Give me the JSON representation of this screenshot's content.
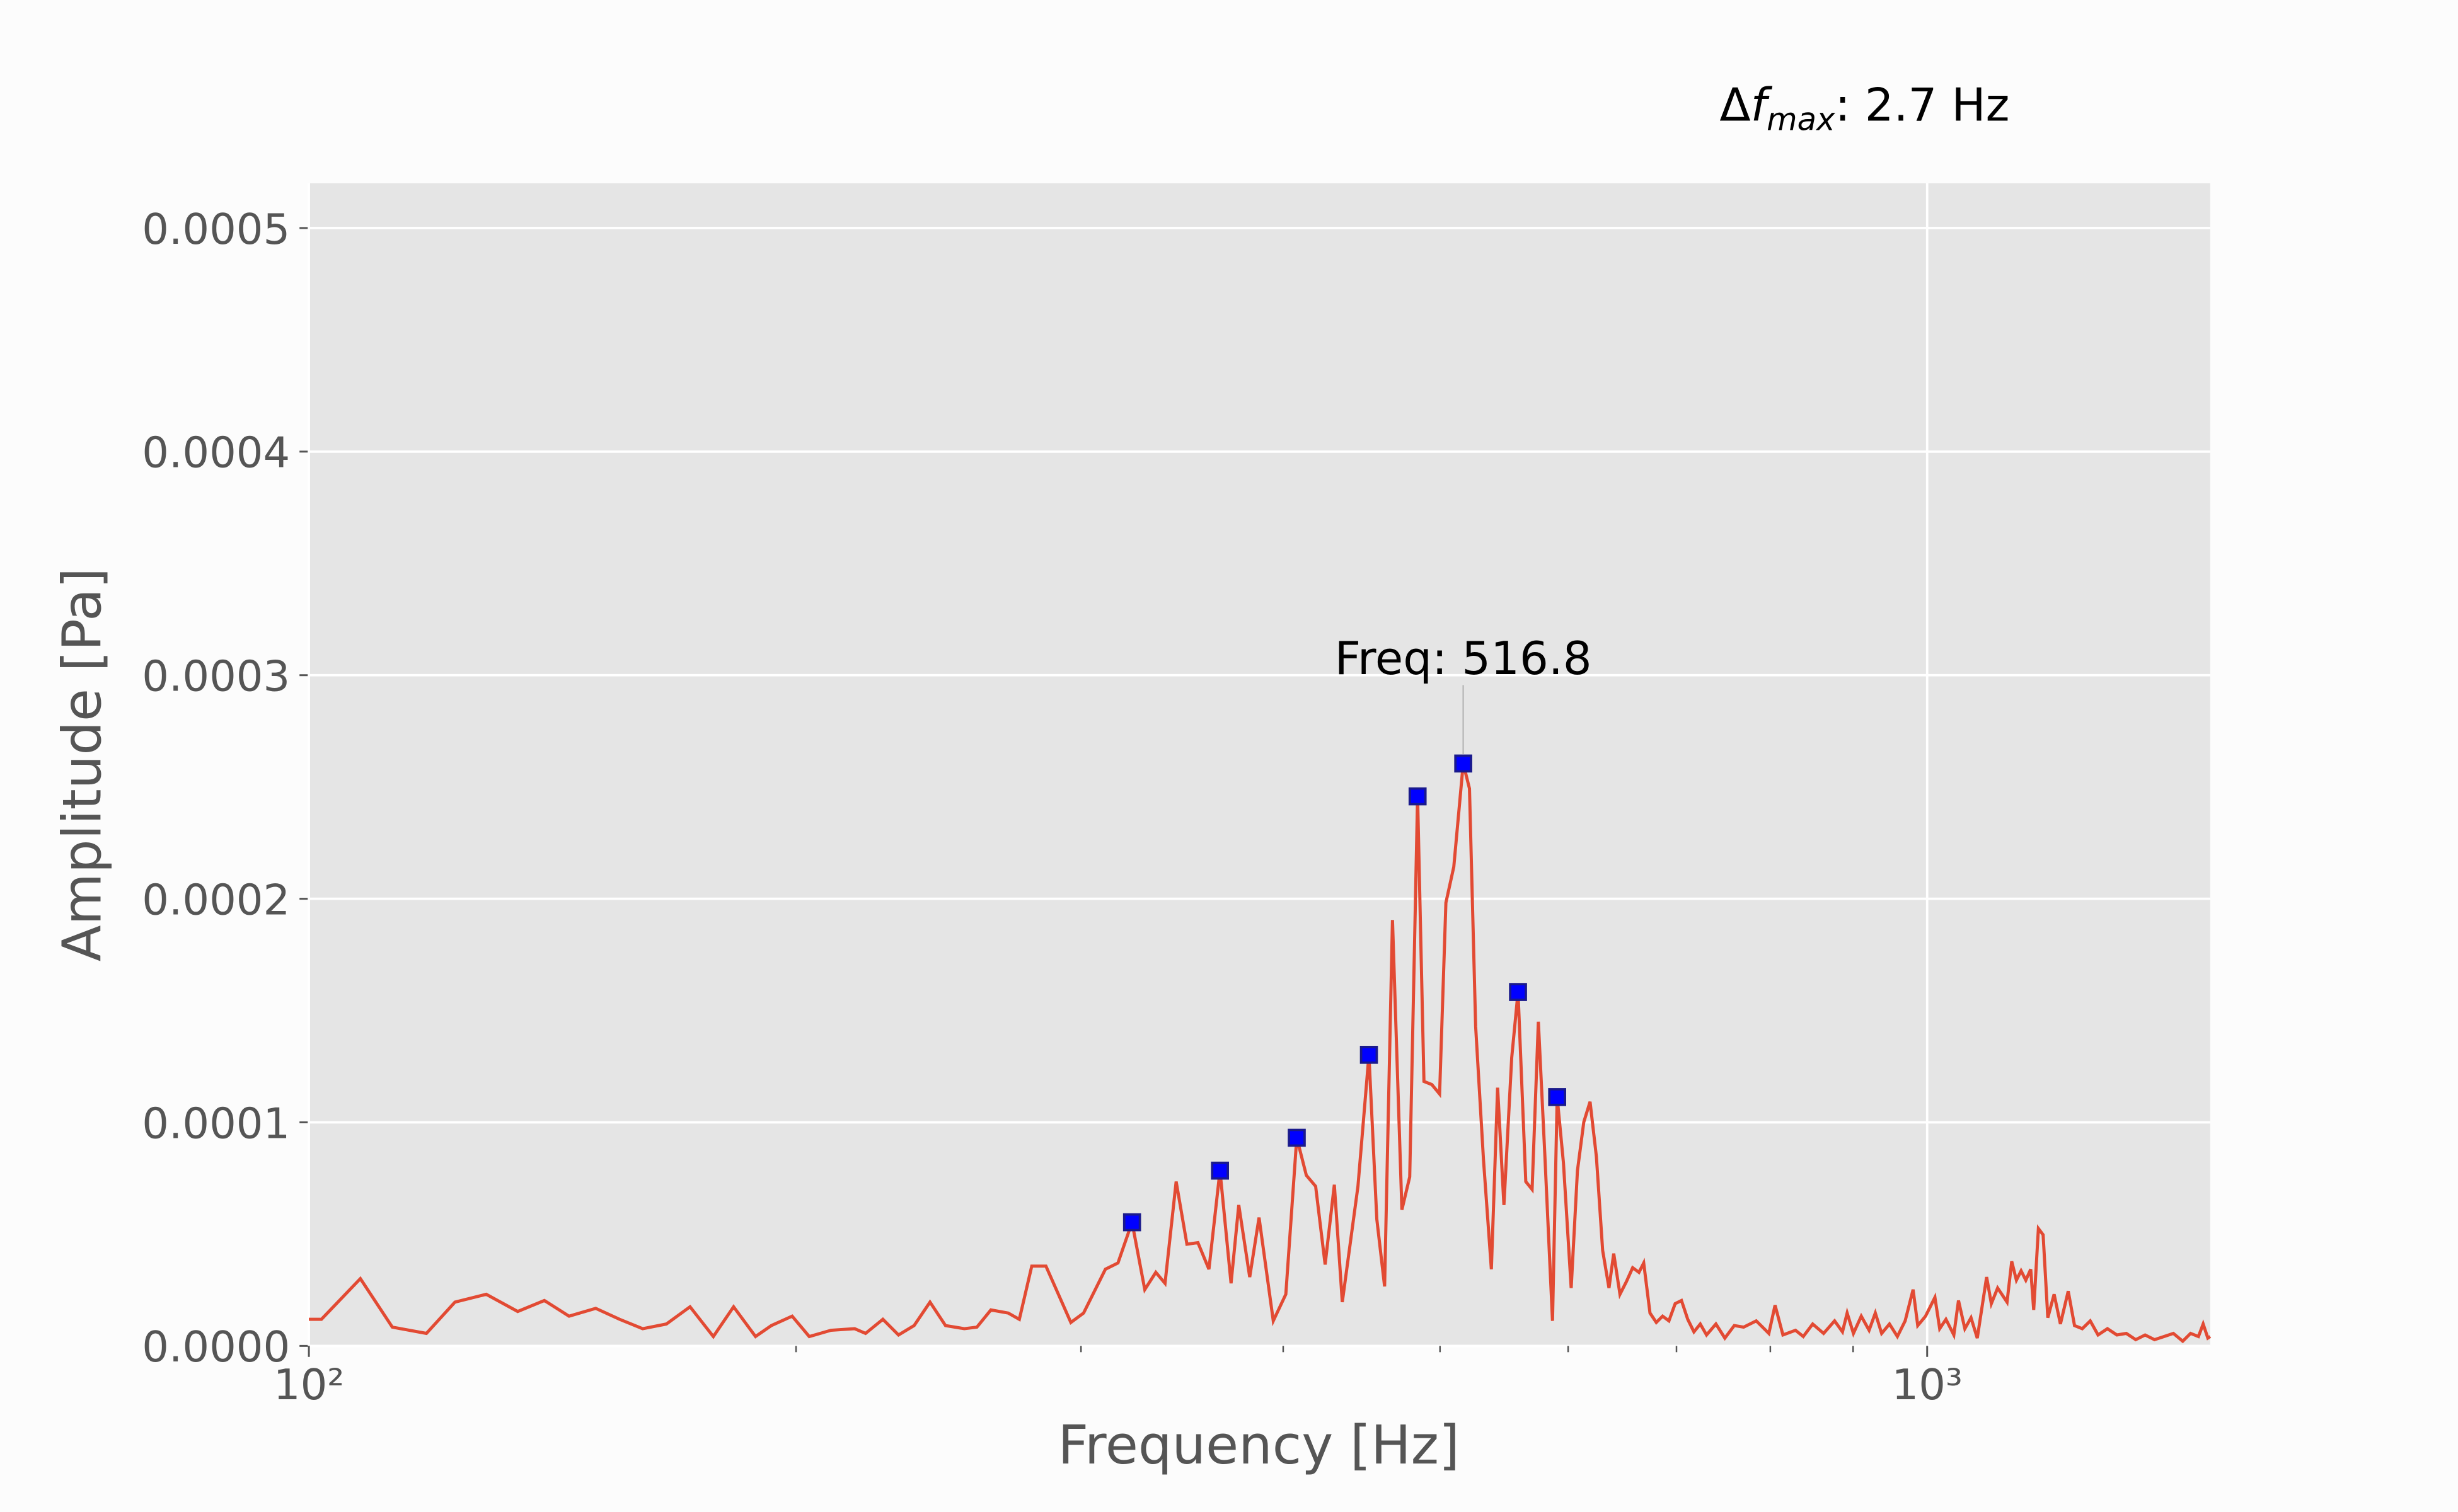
{
  "chart_data": {
    "type": "line",
    "xlabel": "Frequency [Hz]",
    "ylabel": "Amplitude [Pa]",
    "xscale": "log",
    "grid": true,
    "xlim": [
      100,
      1496
    ],
    "ylim": [
      0,
      0.00052
    ],
    "xticks": [
      {
        "value": 100,
        "label": "10²"
      },
      {
        "value": 1000,
        "label": "10³"
      }
    ],
    "xminorticks": [
      200,
      300,
      400,
      500,
      600,
      700,
      800,
      900
    ],
    "yticks": [
      {
        "value": 0,
        "label": "0.0000"
      },
      0.0001,
      0.0002,
      0.0003,
      0.0004,
      0.0005
    ],
    "delta_label": {
      "symbol": "Δ",
      "variable": "f",
      "subscript": "max",
      "suffix": ": 2.7 Hz"
    },
    "peak_label": "Freq: 516.8",
    "series": [
      {
        "color": "#e24a33",
        "x": [
          100,
          101.8,
          107.6,
          112.6,
          118.2,
          123.1,
          128.7,
          134.6,
          139.8,
          144.8,
          150.4,
          155.6,
          160.8,
          166.3,
          172.0,
          177.8,
          183.0,
          188.8,
          193.1,
          198.9,
          203.8,
          210.2,
          217.4,
          220.8,
          226.3,
          231.4,
          236.6,
          242.0,
          247.4,
          254.1,
          258.7,
          263.9,
          270.5,
          274.8,
          279.7,
          285.4,
          295.7,
          301.1,
          310.6,
          316.2,
          322.6,
          328.5,
          333.7,
          338.1,
          343.5,
          348.8,
          354.3,
          359.9,
          365.6,
          371.4,
          375.5,
          381.4,
          386.5,
          394.4,
          401.5,
          407.8,
          413.4,
          418.9,
          424.6,
          430.2,
          435.1,
          444.9,
          451.9,
          457.0,
          462.1,
          467.3,
          473.6,
          478.9,
          484.3,
          488.7,
          494.2,
          499.7,
          504.2,
          509.9,
          516.8,
          521.4,
          526.0,
          531.9,
          537.9,
          542.7,
          547.6,
          553.7,
          558.7,
          564.9,
          570.0,
          575.1,
          580.3,
          586.8,
          590.7,
          596.0,
          602.6,
          608.0,
          613.5,
          619.0,
          624.6,
          630.2,
          635.9,
          640.2,
          645.9,
          651.8,
          657.7,
          663.6,
          668.1,
          674.1,
          680.2,
          686.3,
          692.5,
          698.7,
          705.0,
          711.3,
          717.6,
          724.1,
          730.6,
          740.4,
          749.9,
          760.0,
          770.2,
          784.1,
          798.3,
          805.4,
          814.5,
          829.2,
          838.4,
          849.7,
          863.0,
          876.6,
          886.5,
          892.4,
          900.4,
          910.5,
          920.7,
          928.9,
          937.3,
          947.8,
          958.5,
          969.2,
          980.2,
          986.7,
          997.7,
          1011.1,
          1018.0,
          1027.1,
          1038.7,
          1045.6,
          1055.1,
          1064.4,
          1073.9,
          1088.3,
          1095.6,
          1105.5,
          1120.4,
          1127.9,
          1135.4,
          1143.0,
          1150.7,
          1158.8,
          1163.7,
          1171.5,
          1179.4,
          1187.3,
          1198.0,
          1208.8,
          1222.3,
          1233.3,
          1247.0,
          1261.2,
          1275.3,
          1292.4,
          1309.9,
          1327.6,
          1345.5,
          1363.6,
          1382.0,
          1400.7,
          1419.5,
          1438.6,
          1454.7,
          1471.1,
          1481.0,
          1490.9,
          1496
        ],
        "values": [
          1.19e-05,
          1.19e-05,
          3.01e-05,
          8.4e-06,
          5.6e-06,
          1.96e-05,
          2.31e-05,
          1.54e-05,
          2.03e-05,
          1.33e-05,
          1.68e-05,
          1.19e-05,
          7.7e-06,
          9.8e-06,
          1.75e-05,
          4.2e-06,
          1.75e-05,
          4.2e-06,
          9.1e-06,
          1.33e-05,
          4.2e-06,
          7e-06,
          7.7e-06,
          5.6e-06,
          1.19e-05,
          4.9e-06,
          9.1e-06,
          1.96e-05,
          9.1e-06,
          7.7e-06,
          8.4e-06,
          1.61e-05,
          1.47e-05,
          1.19e-05,
          3.57e-05,
          3.57e-05,
          1.05e-05,
          1.47e-05,
          3.43e-05,
          3.71e-05,
          5.53e-05,
          2.52e-05,
          3.29e-05,
          2.8e-05,
          7.35e-05,
          4.55e-05,
          4.62e-05,
          3.43e-05,
          7.84e-05,
          2.8e-05,
          6.3e-05,
          3.08e-05,
          5.74e-05,
          1.12e-05,
          2.31e-05,
          9.31e-05,
          7.63e-05,
          7.14e-05,
          3.64e-05,
          7.21e-05,
          1.96e-05,
          7.14e-05,
          0.0001302,
          5.67e-05,
          2.66e-05,
          0.0001905,
          6.09e-05,
          7.56e-05,
          0.0002458,
          0.0001183,
          0.0001169,
          0.0001127,
          0.0001982,
          0.0002143,
          0.0002605,
          0.0002493,
          0.0001429,
          8.33e-05,
          3.43e-05,
          0.0001155,
          6.3e-05,
          0.0001289,
          0.0001583,
          7.35e-05,
          7e-05,
          0.000145,
          8.68e-05,
          1.12e-05,
          0.0001113,
          8.19e-05,
          2.59e-05,
          7.84e-05,
          0.0001001,
          0.0001092,
          8.47e-05,
          4.27e-05,
          2.59e-05,
          4.13e-05,
          2.31e-05,
          2.87e-05,
          3.5e-05,
          3.29e-05,
          3.71e-05,
          1.47e-05,
          1.05e-05,
          1.33e-05,
          1.12e-05,
          1.89e-05,
          2.03e-05,
          1.19e-05,
          6.3e-06,
          9.8e-06,
          4.9e-06,
          9.8e-06,
          3.5e-06,
          9.1e-06,
          8.4e-06,
          1.12e-05,
          5.6e-06,
          1.82e-05,
          4.9e-06,
          7e-06,
          4.2e-06,
          9.8e-06,
          5.6e-06,
          1.12e-05,
          6.3e-06,
          1.47e-05,
          5.6e-06,
          1.33e-05,
          7e-06,
          1.47e-05,
          5.6e-06,
          9.8e-06,
          4.2e-06,
          1.12e-05,
          2.52e-05,
          9.1e-06,
          1.33e-05,
          2.17e-05,
          7.7e-06,
          1.19e-05,
          4.9e-06,
          2.03e-05,
          7.7e-06,
          1.26e-05,
          3.5e-06,
          3.08e-05,
          1.89e-05,
          2.59e-05,
          1.96e-05,
          3.78e-05,
          2.94e-05,
          3.36e-05,
          2.94e-05,
          3.43e-05,
          1.61e-05,
          5.25e-05,
          4.97e-05,
          1.26e-05,
          2.31e-05,
          9.8e-06,
          2.45e-05,
          9.1e-06,
          7.7e-06,
          1.12e-05,
          4.9e-06,
          7.7e-06,
          4.9e-06,
          5.6e-06,
          2.8e-06,
          4.9e-06,
          2.8e-06,
          4.2e-06,
          5.6e-06,
          2.1e-06,
          5.6e-06,
          4.2e-06,
          9.8e-06,
          3.5e-06,
          4.2e-06
        ]
      },
      {
        "type": "scatter",
        "color": "#0000ff",
        "edgecolor": "#1a1a8c",
        "x": [
          322.6,
          365.6,
          407.8,
          451.9,
          484.3,
          516.8,
          558.7,
          590.7
        ],
        "values": [
          5.53e-05,
          7.84e-05,
          9.31e-05,
          0.0001302,
          0.0002458,
          0.0002605,
          0.0001583,
          0.0001113
        ]
      }
    ]
  }
}
